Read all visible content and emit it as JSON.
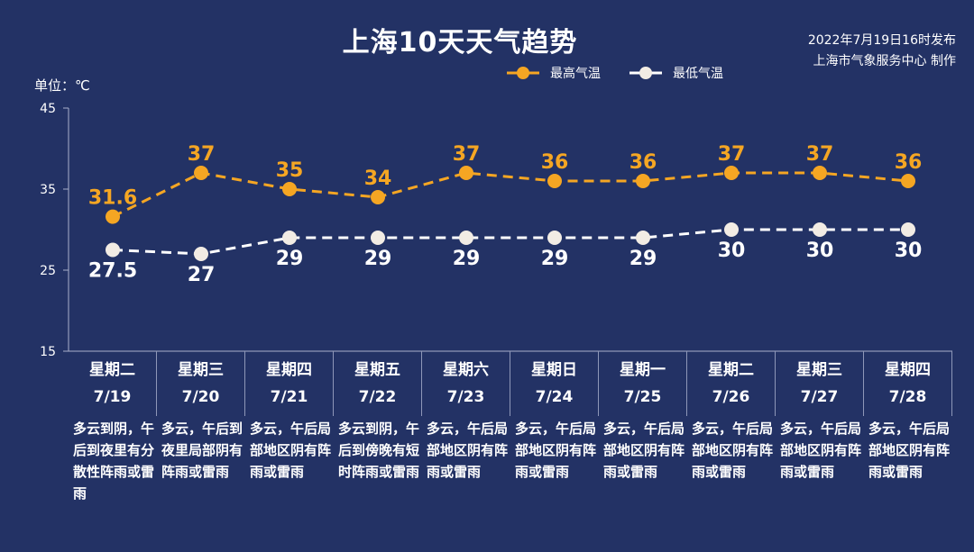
{
  "title": "上海10天天气趋势",
  "publish": {
    "line1": "2022年7月19日16时发布",
    "line2": "上海市气象服务中心 制作"
  },
  "unit_label": "单位：℃",
  "colors": {
    "background": "#233265",
    "high": "#f5a623",
    "low": "#ffffff"
  },
  "days": [
    {
      "weekday": "星期二",
      "date": "7/19",
      "weather": "多云到阴，午后到夜里有分散性阵雨或雷雨"
    },
    {
      "weekday": "星期三",
      "date": "7/20",
      "weather": "多云，午后到夜里局部阴有阵雨或雷雨"
    },
    {
      "weekday": "星期四",
      "date": "7/21",
      "weather": "多云，午后局部地区阴有阵雨或雷雨"
    },
    {
      "weekday": "星期五",
      "date": "7/22",
      "weather": "多云到阴，午后到傍晚有短时阵雨或雷雨"
    },
    {
      "weekday": "星期六",
      "date": "7/23",
      "weather": "多云，午后局部地区阴有阵雨或雷雨"
    },
    {
      "weekday": "星期日",
      "date": "7/24",
      "weather": "多云，午后局部地区阴有阵雨或雷雨"
    },
    {
      "weekday": "星期一",
      "date": "7/25",
      "weather": "多云，午后局部地区阴有阵雨或雷雨"
    },
    {
      "weekday": "星期二",
      "date": "7/26",
      "weather": "多云，午后局部地区阴有阵雨或雷雨"
    },
    {
      "weekday": "星期三",
      "date": "7/27",
      "weather": "多云，午后局部地区阴有阵雨或雷雨"
    },
    {
      "weekday": "星期四",
      "date": "7/28",
      "weather": "多云，午后局部地区阴有阵雨或雷雨"
    }
  ],
  "chart_data": {
    "type": "line",
    "title": "上海10天天气趋势",
    "ylabel": "单位：℃",
    "categories": [
      "7/19",
      "7/20",
      "7/21",
      "7/22",
      "7/23",
      "7/24",
      "7/25",
      "7/26",
      "7/27",
      "7/28"
    ],
    "ylim": [
      15,
      45
    ],
    "yticks": [
      "15",
      "25",
      "35",
      "45"
    ],
    "legend_position": "top-right",
    "grid": false,
    "series": [
      {
        "name": "最高气温",
        "color": "#f5a623",
        "values": [
          31.6,
          37,
          35,
          34,
          37,
          36,
          36,
          37,
          37,
          36
        ],
        "labels": [
          "31.6",
          "37",
          "35",
          "34",
          "37",
          "36",
          "36",
          "37",
          "37",
          "36"
        ]
      },
      {
        "name": "最低气温",
        "color": "#ffffff",
        "values": [
          27.5,
          27,
          29,
          29,
          29,
          29,
          29,
          30,
          30,
          30
        ],
        "labels": [
          "27.5",
          "27",
          "29",
          "29",
          "29",
          "29",
          "29",
          "30",
          "30",
          "30"
        ]
      }
    ]
  }
}
